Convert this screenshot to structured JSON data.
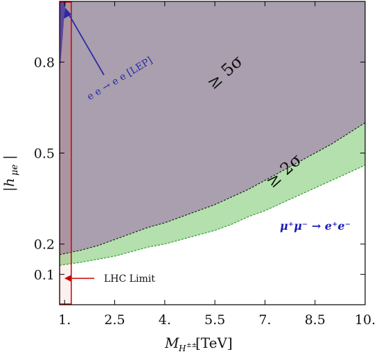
{
  "chart_data": {
    "type": "area",
    "xlabel_main": "M",
    "xlabel_sub": "H",
    "xlabel_sup": "±±",
    "xlabel_unit": " [TeV]",
    "ylabel": "|h",
    "ylabel_sub": "μe",
    "ylabel_close": "|",
    "xlim": [
      0.85,
      10.0
    ],
    "ylim": [
      0.0,
      1.0
    ],
    "xticks": [
      1.0,
      2.5,
      4.0,
      5.5,
      7.0,
      8.5,
      10.0
    ],
    "xtick_labels": [
      "1.",
      "2.5",
      "4.",
      "5.5",
      "7.",
      "8.5",
      "10."
    ],
    "yticks": [
      0.1,
      0.2,
      0.5,
      0.8
    ],
    "ytick_labels": [
      "0.1",
      "0.2",
      "0.5",
      "0.8"
    ],
    "series": [
      {
        "name": "≥ 5σ",
        "color": "#a99fae",
        "x": [
          0.85,
          1.5,
          2.0,
          2.5,
          3.0,
          3.5,
          4.0,
          4.5,
          5.0,
          5.5,
          6.0,
          6.5,
          7.0,
          7.5,
          8.0,
          8.5,
          9.0,
          9.5,
          10.0
        ],
        "y": [
          0.165,
          0.18,
          0.195,
          0.215,
          0.235,
          0.255,
          0.27,
          0.29,
          0.31,
          0.33,
          0.355,
          0.38,
          0.41,
          0.44,
          0.47,
          0.5,
          0.53,
          0.565,
          0.6
        ]
      },
      {
        "name": "≥ 2σ",
        "color": "#b3e0ad",
        "x": [
          0.85,
          1.5,
          2.0,
          2.5,
          3.0,
          3.5,
          4.0,
          4.5,
          5.0,
          5.5,
          6.0,
          6.5,
          7.0,
          7.5,
          8.0,
          8.5,
          9.0,
          9.5,
          10.0
        ],
        "y": [
          0.13,
          0.14,
          0.15,
          0.16,
          0.175,
          0.19,
          0.2,
          0.215,
          0.23,
          0.245,
          0.265,
          0.29,
          0.31,
          0.335,
          0.36,
          0.385,
          0.41,
          0.435,
          0.46
        ]
      }
    ],
    "lep_region": {
      "name": "e e → e e [LEP]",
      "color": "#3333aa",
      "x": [
        0.85,
        0.85,
        1.05,
        1.0,
        0.92
      ],
      "y": [
        0.76,
        1.0,
        1.0,
        0.97,
        0.85
      ]
    },
    "lhc_limit": {
      "label": "LHC Limit",
      "x_min": 0.85,
      "x_max": 1.2,
      "color": "#cc0000"
    },
    "annotations": {
      "five_sigma": "≥ 5σ",
      "two_sigma": "≥ 2σ",
      "lep": "e e → e e [LEP]",
      "process": "μ⁺μ⁻ → e⁺e⁻"
    }
  }
}
